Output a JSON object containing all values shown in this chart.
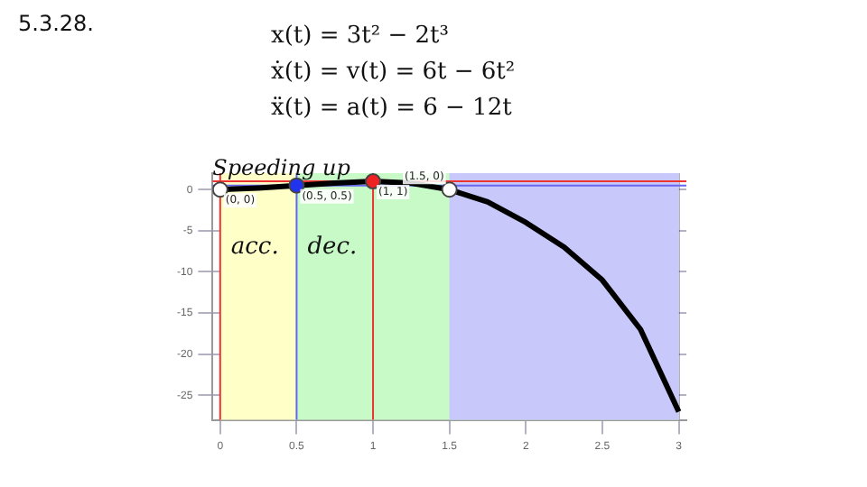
{
  "chart_data": {
    "type": "line",
    "title": "5.3.28.",
    "annotations": [
      "x(t) = 3t² − 2t³",
      "ẋ(t) = v(t) = 6t − 6t²",
      "ẍ(t) = a(t) = 6 − 12t",
      {
        "text": "Speeding up",
        "x": 0.4,
        "y": 1.6
      },
      {
        "text": "(0, 0)",
        "x": 0,
        "y": 0
      },
      {
        "text": "(0.5, 0.5)",
        "x": 0.5,
        "y": 0.5
      },
      {
        "text": "(1, 1)",
        "x": 1,
        "y": 1
      },
      {
        "text": "(1.5, 0)",
        "x": 1.5,
        "y": 0
      }
    ],
    "series": [
      {
        "color": "#000000",
        "marker": "none",
        "x": [
          0,
          0.25,
          0.5,
          0.75,
          1,
          1.25,
          1.5,
          1.75,
          2,
          2.25,
          2.5,
          2.75,
          3
        ],
        "values": [
          0,
          0.2,
          0.5,
          0.8,
          1,
          0.8,
          0,
          -1.5,
          -4,
          -7,
          -11,
          -17,
          -27
        ]
      },
      {
        "type": "scatter",
        "marker": "circle",
        "colors": [
          "#ffffff",
          "#2233ee",
          "#ee2222",
          "#ffffff"
        ],
        "x": [
          0,
          0.5,
          1,
          1.5
        ],
        "values": [
          0,
          0.5,
          1,
          0
        ]
      }
    ],
    "bands": [
      {
        "axis": "x",
        "from": 0,
        "to": 0.5,
        "label": "acc.",
        "color": "#ffffc8"
      },
      {
        "axis": "x",
        "from": 0.5,
        "to": 3,
        "label": "dec.",
        "color": "#c8fac8"
      },
      {
        "axis": "x",
        "from": 1.5,
        "to": 3,
        "color": "#c8c8fa"
      }
    ],
    "ref_lines": [
      {
        "axis": "x",
        "value": 0,
        "color": "#ee3333"
      },
      {
        "axis": "x",
        "value": 0.5,
        "color": "#6666ee"
      },
      {
        "axis": "x",
        "value": 1,
        "color": "#ee3333"
      },
      {
        "axis": "y",
        "value": 1,
        "color": "#ee3333"
      },
      {
        "axis": "y",
        "value": 0.5,
        "color": "#6666ee"
      }
    ],
    "xlim": [
      -0.05,
      3.05
    ],
    "xticks": [
      0,
      0.5,
      1,
      1.5,
      2,
      2.5,
      3
    ],
    "ylim": [
      -28,
      2
    ],
    "yticks": [
      0,
      -5,
      -10,
      -15,
      -20,
      -25
    ],
    "grid": true,
    "legend": false
  }
}
